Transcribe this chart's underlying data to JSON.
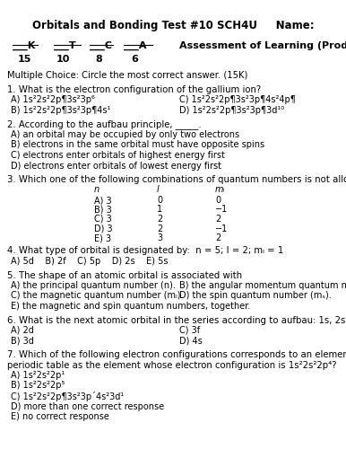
{
  "title": "Orbitals and Bonding Test #10 SCH4U     Name:",
  "subtitle_labels": [
    "___K",
    "___T",
    "___C",
    "___A"
  ],
  "subtitle_values": [
    "15",
    "10",
    "8",
    "6"
  ],
  "assessment_label": "Assessment of Learning (Product)",
  "mc_header": "Multiple Choice: Circle the most correct answer. (15K)",
  "questions": [
    {
      "num": "1.",
      "text": "What is the electron configuration of the gallium ion?",
      "options": [
        [
          "A) 1s²2s²2p¶3s²3p⁶",
          "C) 1s²2s²2p¶3s²3p¶4s²4p¶"
        ],
        [
          "B) 1s²2s²2p¶3s²3p¶4s¹",
          "D) 1s²2s²2p¶3s²3p¶3d¹⁰"
        ]
      ]
    },
    {
      "num": "2.",
      "text": "According to the aufbau principle, _____.",
      "options_list": [
        "A) an orbital may be occupied by only two electrons",
        "B) electrons in the same orbital must have opposite spins",
        "C) electrons enter orbitals of highest energy first",
        "D) electrons enter orbitals of lowest energy first"
      ]
    },
    {
      "num": "3.",
      "text": "Which one of the following combinations of quantum numbers is not allowed?",
      "table_headers": [
        "n",
        "l",
        "mₗ"
      ],
      "table_rows": [
        [
          "A) 3",
          "0",
          "0"
        ],
        [
          "B) 3",
          "1",
          "−1"
        ],
        [
          "C) 3",
          "2",
          "2"
        ],
        [
          "D) 3",
          "2",
          "−1"
        ],
        [
          "E) 3",
          "3",
          "2"
        ]
      ]
    },
    {
      "num": "4.",
      "text": "What type of orbital is designated by:  n = 5; l = 2; mₗ = 1",
      "options_inline": "A) 5d    B) 2f    C) 5p    D) 2s    E) 5s"
    },
    {
      "num": "5.",
      "text": "The shape of an atomic orbital is associated with",
      "options": [
        [
          "A) the principal quantum number (n).",
          "B) the angular momentum quantum number (l)."
        ],
        [
          "C) the magnetic quantum number (mₗ).",
          "D) the spin quantum number (mₛ)."
        ],
        [
          "E) the magnetic and spin quantum numbers, together.",
          ""
        ]
      ]
    },
    {
      "num": "6.",
      "text": "What is the next atomic orbital in the series according to aufbau: 1s, 2s, 2p, 3s, 3p?",
      "options": [
        [
          "A) 2d",
          "C) 3f"
        ],
        [
          "B) 3d",
          "D) 4s"
        ]
      ]
    },
    {
      "num": "7.",
      "text_line1": "Which of the following electron configurations corresponds to an element in the same group of the",
      "text_line2": "periodic table as the element whose electron configuration is 1s²2s²2p⁴?",
      "options_list": [
        "A) 1s²2s²2p¹",
        "B) 1s²2s²2p⁵",
        "C) 1s²2s²2p¶3s²3p´4s²3d¹",
        "D) more than one correct response",
        "E) no correct response"
      ]
    }
  ],
  "bg_color": "#ffffff",
  "text_color": "#000000"
}
